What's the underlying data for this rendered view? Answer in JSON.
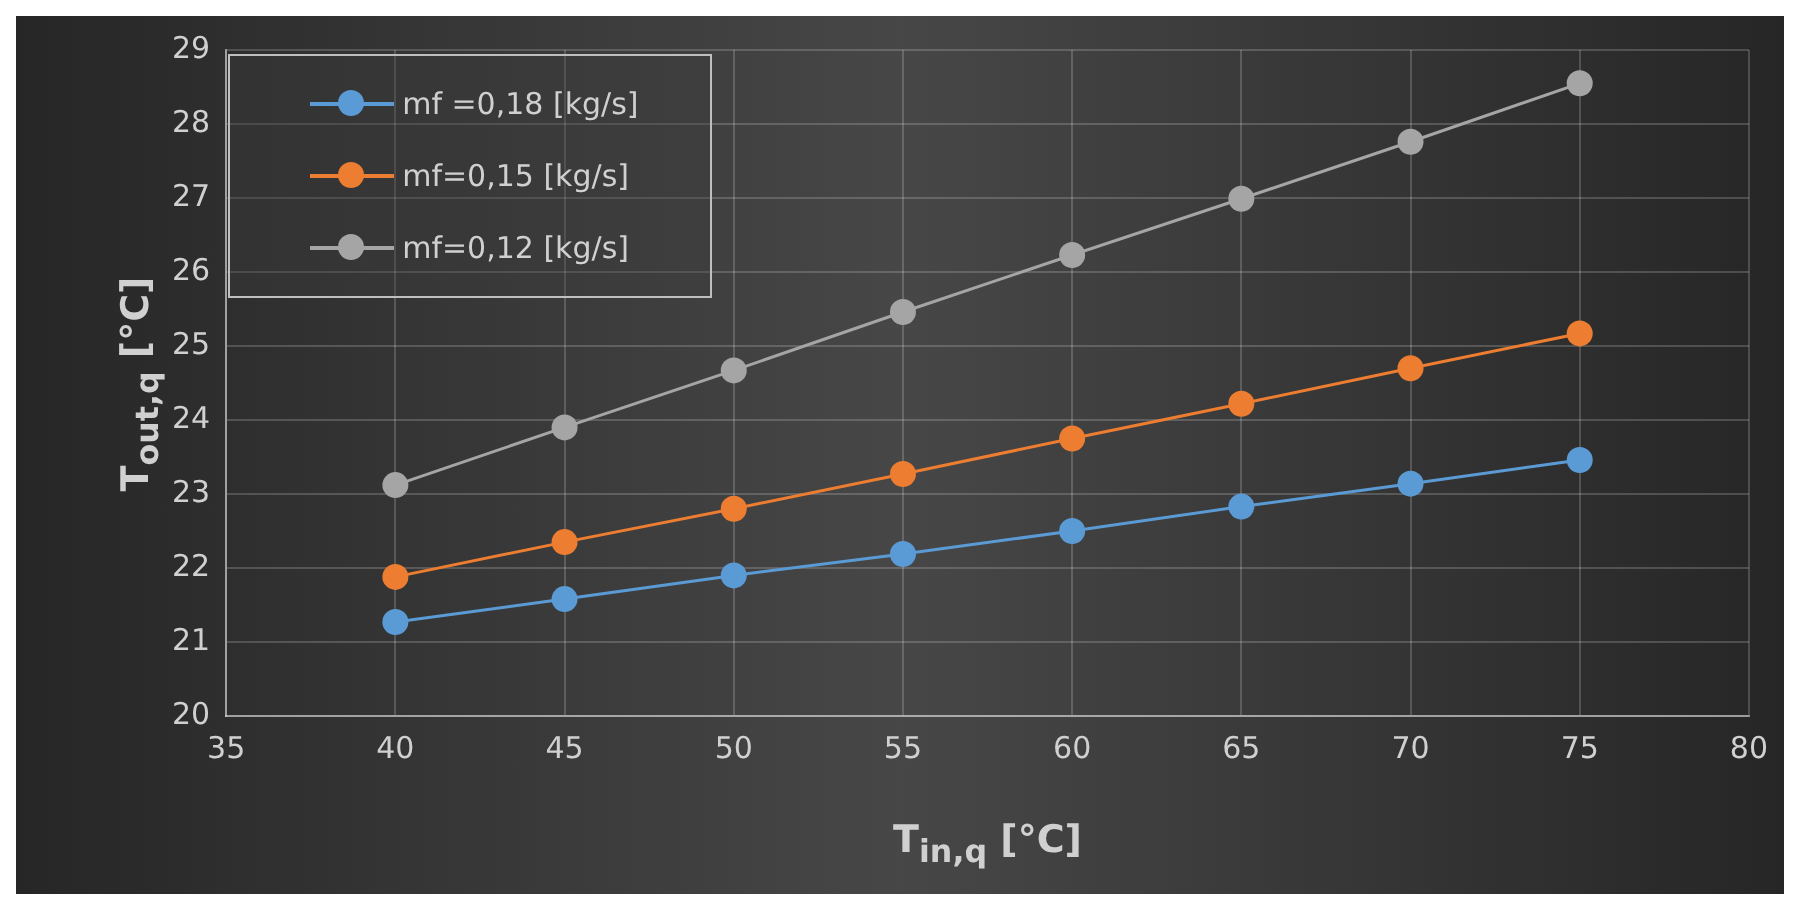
{
  "chart_data": {
    "type": "line",
    "xlabel": "T$_{in,q}$ [°C]",
    "ylabel": "T$_{out,q}$ [°C]",
    "x": [
      40,
      45,
      50,
      55,
      60,
      65,
      70,
      75
    ],
    "series": [
      {
        "name": "mf =0,18 [kg/s]",
        "color": "#5b9bd5",
        "values": [
          21.27,
          21.58,
          21.9,
          22.19,
          22.5,
          22.83,
          23.14,
          23.46
        ]
      },
      {
        "name": "mf=0,15 [kg/s]",
        "color": "#ed7d31",
        "values": [
          21.88,
          22.35,
          22.8,
          23.27,
          23.75,
          24.22,
          24.7,
          25.17
        ]
      },
      {
        "name": "mf=0,12 [kg/s]",
        "color": "#a5a5a5",
        "values": [
          23.12,
          23.9,
          24.67,
          25.46,
          26.23,
          26.99,
          27.76,
          28.55
        ]
      }
    ],
    "xlim": [
      35,
      80
    ],
    "xticks": [
      35,
      40,
      45,
      50,
      55,
      60,
      65,
      70,
      75,
      80
    ],
    "ylim": [
      20,
      29
    ],
    "yticks": [
      20,
      21,
      22,
      23,
      24,
      25,
      26,
      27,
      28,
      29
    ],
    "grid": true,
    "legend": "top left",
    "marker": "circle",
    "line_style": "solid"
  }
}
